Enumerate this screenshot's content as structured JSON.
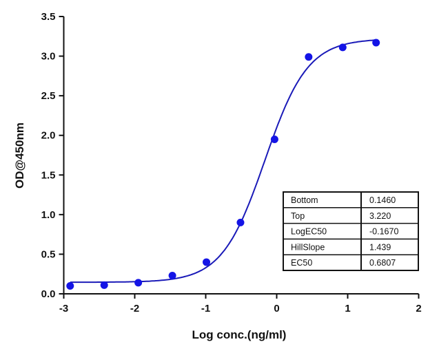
{
  "chart_data": {
    "type": "scatter",
    "title": "",
    "xlabel": "Log conc.(ng/ml)",
    "ylabel": "OD@450nm",
    "xlim": [
      -3,
      2
    ],
    "ylim": [
      0,
      3.5
    ],
    "x_ticks": [
      "-3",
      "-2",
      "-1",
      "0",
      "1",
      "2"
    ],
    "y_ticks": [
      "0.0",
      "0.5",
      "1.0",
      "1.5",
      "2.0",
      "2.5",
      "3.0",
      "3.5"
    ],
    "grid": false,
    "series": [
      {
        "x": [
          -2.91,
          -2.43,
          -1.95,
          -1.47,
          -0.99,
          -0.51,
          -0.03,
          0.45,
          0.93,
          1.4
        ],
        "y": [
          0.1,
          0.11,
          0.14,
          0.23,
          0.4,
          0.9,
          1.95,
          2.99,
          3.11,
          3.17
        ],
        "color": "#1414e6"
      }
    ],
    "fit": {
      "model": "four-parameter logistic",
      "color": "#1a1ab8",
      "bottom": 0.146,
      "top": 3.22,
      "logec50": -0.167,
      "hillslope": 1.439
    },
    "results_table": [
      {
        "label": "Bottom",
        "value": "0.1460"
      },
      {
        "label": "Top",
        "value": "3.220"
      },
      {
        "label": "LogEC50",
        "value": "-0.1670"
      },
      {
        "label": "HillSlope",
        "value": "1.439"
      },
      {
        "label": "EC50",
        "value": "0.6807"
      }
    ]
  }
}
